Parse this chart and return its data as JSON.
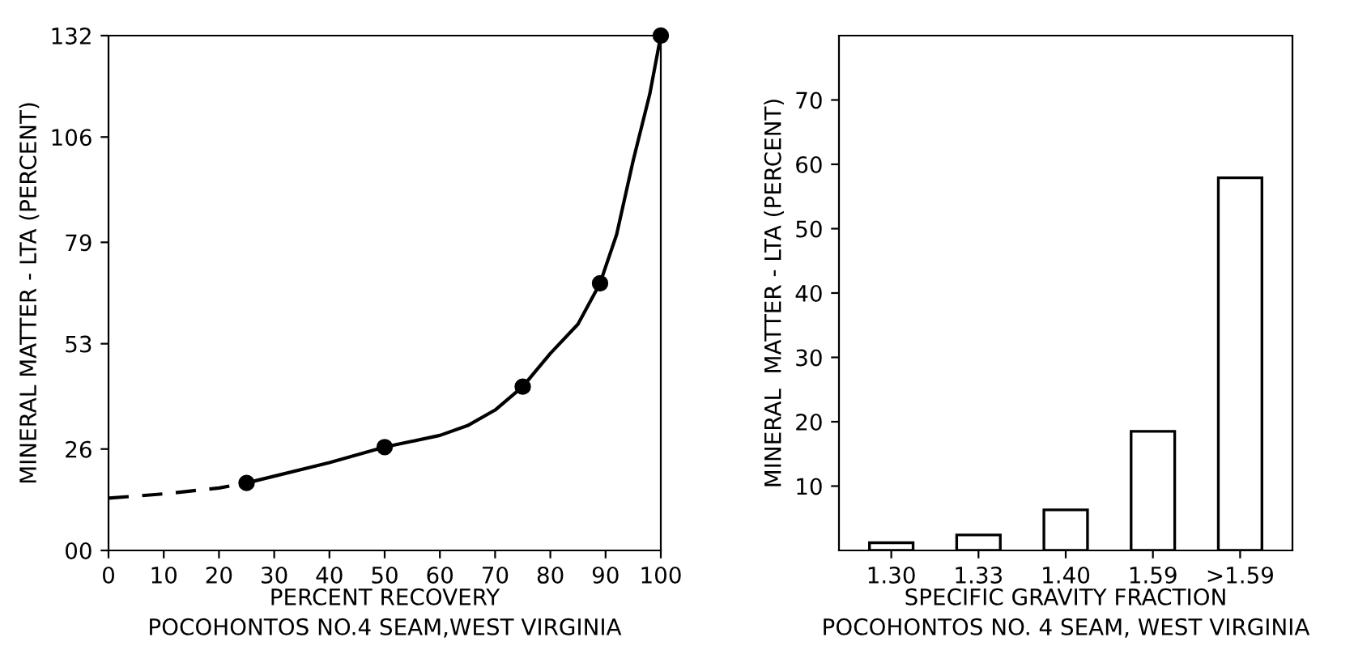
{
  "chart_data": [
    {
      "type": "line",
      "xlabel": "PERCENT RECOVERY",
      "ylabel": "MINERAL MATTER - LTA (PERCENT)",
      "annotations": [
        "POCOHONTOS NO.4 SEAM,WEST VIRGINIA"
      ],
      "xlim": [
        0,
        100
      ],
      "ylim": [
        0,
        132
      ],
      "xticks": [
        0,
        10,
        20,
        30,
        40,
        50,
        60,
        70,
        80,
        90,
        100
      ],
      "yticks": [
        {
          "value": 0,
          "label": "00"
        },
        26,
        53,
        79,
        106,
        132
      ],
      "grid": false,
      "legend": false,
      "series": [
        {
          "type": "line",
          "line_style": "dashed",
          "marker": "none",
          "color": "#000000",
          "x": [
            0,
            10,
            20,
            25
          ],
          "values": [
            13.4,
            14.5,
            16,
            17.3
          ]
        },
        {
          "type": "line",
          "line_style": "solid",
          "marker": "none",
          "color": "#000000",
          "x": [
            25,
            40,
            50,
            60,
            65,
            70,
            75,
            80,
            85,
            89,
            92,
            95,
            98,
            100
          ],
          "values": [
            17.3,
            22.5,
            26.5,
            29.5,
            32,
            36,
            42,
            50.5,
            58,
            68.5,
            81,
            100,
            117,
            132
          ]
        },
        {
          "type": "scatter",
          "marker": "circle",
          "color": "#000000",
          "x": [
            25,
            50,
            75,
            89,
            100
          ],
          "values": [
            17.3,
            26.5,
            42,
            68.5,
            132
          ]
        }
      ]
    },
    {
      "type": "bar",
      "xlabel": "SPECIFIC GRAVITY FRACTION",
      "ylabel": "MINERAL  MATTER - LTA (PERCENT)",
      "annotations": [
        "POCOHONTOS NO. 4 SEAM, WEST VIRGINIA"
      ],
      "categories": [
        "1.30",
        "1.33",
        "1.40",
        "1.59",
        ">1.59"
      ],
      "ylim": [
        0,
        80
      ],
      "yticks": [
        10,
        20,
        30,
        40,
        50,
        60,
        70
      ],
      "grid": false,
      "legend": false,
      "series": [
        {
          "color": "#ffffff",
          "values": [
            1.2,
            2.4,
            6.3,
            18.5,
            57.9
          ]
        }
      ]
    }
  ]
}
